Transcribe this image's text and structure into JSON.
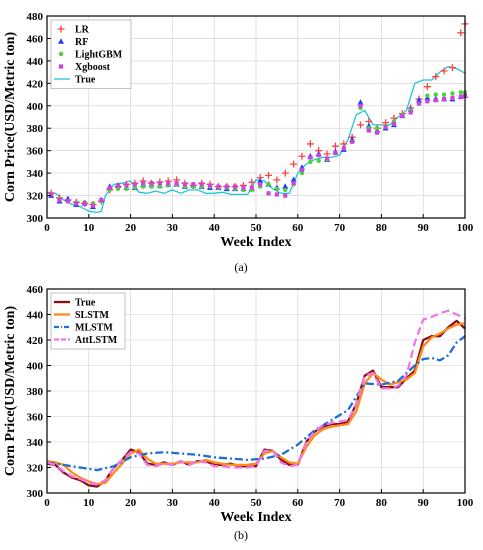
{
  "chart_data": [
    {
      "type": "scatter",
      "caption": "(a)",
      "xlabel": "Week Index",
      "ylabel": "Corn Price(USD/Metric ton)",
      "xlim": [
        0,
        100
      ],
      "ylim": [
        300,
        480
      ],
      "xticks": [
        0,
        10,
        20,
        30,
        40,
        50,
        60,
        70,
        80,
        90,
        100
      ],
      "yticks": [
        300,
        320,
        340,
        360,
        380,
        400,
        420,
        440,
        460,
        480
      ],
      "grid": true,
      "legend_position": "top-left",
      "series": [
        {
          "name": "LR",
          "style": "marker",
          "marker": "+",
          "color": "#ff4040",
          "x": [
            1,
            3,
            5,
            7,
            9,
            11,
            13,
            15,
            17,
            19,
            21,
            23,
            25,
            27,
            29,
            31,
            33,
            35,
            37,
            39,
            41,
            43,
            45,
            47,
            49,
            51,
            53,
            55,
            57,
            59,
            61,
            63,
            65,
            67,
            69,
            71,
            73,
            75,
            77,
            79,
            81,
            83,
            85,
            87,
            89,
            91,
            93,
            95,
            97,
            99,
            100
          ],
          "y": [
            322,
            318,
            316,
            314,
            313,
            312,
            315,
            325,
            328,
            330,
            331,
            333,
            331,
            332,
            333,
            334,
            331,
            329,
            331,
            330,
            328,
            328,
            328,
            329,
            332,
            336,
            338,
            334,
            340,
            348,
            355,
            366,
            360,
            357,
            364,
            366,
            372,
            383,
            386,
            380,
            385,
            389,
            393,
            398,
            406,
            417,
            426,
            431,
            434,
            465,
            473
          ]
        },
        {
          "name": "RF",
          "style": "marker",
          "marker": "triangle",
          "color": "#1e3cff",
          "x": [
            1,
            3,
            5,
            7,
            9,
            11,
            13,
            15,
            17,
            19,
            21,
            23,
            25,
            27,
            29,
            31,
            33,
            35,
            37,
            39,
            41,
            43,
            45,
            47,
            49,
            51,
            53,
            55,
            57,
            59,
            61,
            63,
            65,
            67,
            69,
            71,
            73,
            75,
            77,
            79,
            81,
            83,
            85,
            87,
            89,
            91,
            93,
            95,
            97,
            99,
            100
          ],
          "y": [
            320,
            315,
            317,
            312,
            313,
            310,
            316,
            328,
            329,
            327,
            327,
            330,
            330,
            329,
            330,
            330,
            328,
            329,
            328,
            327,
            327,
            326,
            326,
            326,
            326,
            333,
            330,
            327,
            328,
            334,
            345,
            355,
            357,
            352,
            359,
            361,
            370,
            403,
            382,
            378,
            380,
            383,
            391,
            397,
            405,
            407,
            406,
            406,
            406,
            408,
            409
          ]
        },
        {
          "name": "LightGBM",
          "style": "marker",
          "marker": "dot",
          "color": "#4cd137",
          "x": [
            1,
            3,
            5,
            7,
            9,
            11,
            13,
            15,
            17,
            19,
            21,
            23,
            25,
            27,
            29,
            31,
            33,
            35,
            37,
            39,
            41,
            43,
            45,
            47,
            49,
            51,
            53,
            55,
            57,
            59,
            61,
            63,
            65,
            67,
            69,
            71,
            73,
            75,
            77,
            79,
            81,
            83,
            85,
            87,
            89,
            91,
            93,
            95,
            97,
            99,
            100
          ],
          "y": [
            321,
            317,
            315,
            314,
            314,
            313,
            315,
            325,
            326,
            326,
            327,
            328,
            328,
            328,
            329,
            330,
            328,
            328,
            328,
            328,
            327,
            327,
            326,
            325,
            325,
            328,
            330,
            326,
            325,
            330,
            340,
            350,
            351,
            352,
            358,
            362,
            368,
            398,
            380,
            380,
            382,
            386,
            392,
            396,
            402,
            409,
            410,
            410,
            411,
            412,
            412
          ]
        },
        {
          "name": "Xgboost",
          "style": "marker",
          "marker": "square",
          "color": "#cc44dd",
          "x": [
            1,
            3,
            5,
            7,
            9,
            11,
            13,
            15,
            17,
            19,
            21,
            23,
            25,
            27,
            29,
            31,
            33,
            35,
            37,
            39,
            41,
            43,
            45,
            47,
            49,
            51,
            53,
            55,
            57,
            59,
            61,
            63,
            65,
            67,
            69,
            71,
            73,
            75,
            77,
            79,
            81,
            83,
            85,
            87,
            89,
            91,
            93,
            95,
            97,
            99,
            100
          ],
          "y": [
            321,
            316,
            315,
            313,
            313,
            311,
            316,
            327,
            329,
            329,
            330,
            331,
            331,
            331,
            331,
            331,
            330,
            330,
            330,
            329,
            328,
            328,
            328,
            327,
            327,
            330,
            322,
            321,
            320,
            331,
            343,
            354,
            356,
            353,
            358,
            362,
            368,
            400,
            378,
            376,
            381,
            384,
            391,
            394,
            402,
            404,
            405,
            406,
            407,
            408,
            409
          ]
        },
        {
          "name": "True",
          "style": "line",
          "color": "#1fc7d4",
          "x": [
            0,
            2,
            4,
            6,
            8,
            10,
            12,
            13,
            14,
            16,
            18,
            20,
            22,
            24,
            26,
            28,
            30,
            32,
            34,
            36,
            38,
            40,
            42,
            44,
            46,
            48,
            50,
            52,
            54,
            56,
            58,
            60,
            62,
            64,
            66,
            68,
            70,
            72,
            74,
            76,
            78,
            80,
            82,
            84,
            86,
            88,
            90,
            92,
            94,
            96,
            98,
            100
          ],
          "y": [
            323,
            322,
            316,
            312,
            310,
            306,
            305,
            306,
            320,
            330,
            331,
            333,
            323,
            322,
            324,
            322,
            325,
            322,
            325,
            325,
            322,
            322,
            323,
            321,
            321,
            321,
            334,
            333,
            326,
            322,
            322,
            340,
            348,
            352,
            354,
            354,
            356,
            370,
            392,
            396,
            383,
            383,
            383,
            390,
            396,
            420,
            423,
            423,
            430,
            435,
            433,
            429
          ]
        }
      ]
    },
    {
      "type": "line",
      "caption": "(b)",
      "xlabel": "Week Index",
      "ylabel": "Corn Price(USD/Metric ton)",
      "xlim": [
        0,
        100
      ],
      "ylim": [
        300,
        460
      ],
      "xticks": [
        0,
        10,
        20,
        30,
        40,
        50,
        60,
        70,
        80,
        90,
        100
      ],
      "yticks": [
        300,
        320,
        340,
        360,
        380,
        400,
        420,
        440,
        460
      ],
      "grid": true,
      "legend_position": "top-left",
      "series": [
        {
          "name": "True",
          "style": "solid",
          "color": "#8b0f1a",
          "x": [
            0,
            2,
            4,
            6,
            8,
            10,
            12,
            14,
            16,
            18,
            20,
            22,
            24,
            26,
            28,
            30,
            32,
            34,
            36,
            38,
            40,
            42,
            44,
            46,
            48,
            50,
            52,
            54,
            56,
            58,
            60,
            62,
            64,
            66,
            68,
            70,
            72,
            74,
            76,
            78,
            80,
            82,
            84,
            86,
            88,
            90,
            92,
            94,
            96,
            98,
            100
          ],
          "y": [
            323,
            322,
            316,
            312,
            310,
            306,
            305,
            310,
            320,
            326,
            334,
            332,
            323,
            322,
            324,
            322,
            325,
            322,
            325,
            325,
            322,
            322,
            323,
            321,
            321,
            321,
            334,
            333,
            326,
            322,
            322,
            340,
            348,
            352,
            354,
            354,
            356,
            370,
            392,
            396,
            383,
            383,
            383,
            390,
            396,
            420,
            423,
            423,
            430,
            435,
            429
          ]
        },
        {
          "name": "SLSTM",
          "style": "solid",
          "color": "#ff8c1a",
          "x": [
            0,
            2,
            4,
            6,
            8,
            10,
            12,
            14,
            16,
            18,
            20,
            22,
            24,
            26,
            28,
            30,
            32,
            34,
            36,
            38,
            40,
            42,
            44,
            46,
            48,
            50,
            52,
            54,
            56,
            58,
            60,
            62,
            64,
            66,
            68,
            70,
            72,
            74,
            76,
            78,
            80,
            82,
            84,
            86,
            88,
            90,
            92,
            94,
            96,
            98,
            100
          ],
          "y": [
            325,
            324,
            322,
            316,
            312,
            309,
            307,
            308,
            316,
            323,
            331,
            334,
            327,
            323,
            323,
            323,
            324,
            324,
            324,
            326,
            324,
            323,
            322,
            322,
            322,
            323,
            331,
            333,
            328,
            324,
            323,
            336,
            345,
            350,
            352,
            353,
            354,
            364,
            386,
            394,
            389,
            385,
            387,
            389,
            394,
            415,
            422,
            425,
            429,
            432,
            433
          ]
        },
        {
          "name": "MLSTM",
          "style": "dash-dot",
          "color": "#1f6fcf",
          "x": [
            0,
            4,
            8,
            12,
            16,
            20,
            24,
            28,
            32,
            36,
            40,
            44,
            48,
            52,
            56,
            60,
            64,
            68,
            72,
            76,
            80,
            84,
            88,
            90,
            92,
            94,
            96,
            98,
            100
          ],
          "y": [
            324,
            322,
            320,
            318,
            321,
            328,
            331,
            332,
            331,
            330,
            328,
            327,
            326,
            327,
            330,
            338,
            349,
            357,
            365,
            386,
            385,
            388,
            400,
            405,
            406,
            404,
            408,
            418,
            423
          ]
        },
        {
          "name": "AttLSTM",
          "style": "dashed",
          "color": "#f076e6",
          "x": [
            0,
            2,
            4,
            6,
            8,
            10,
            12,
            14,
            16,
            18,
            20,
            22,
            24,
            26,
            28,
            30,
            32,
            34,
            36,
            38,
            40,
            42,
            44,
            46,
            48,
            50,
            52,
            54,
            56,
            58,
            60,
            62,
            64,
            66,
            68,
            70,
            72,
            74,
            76,
            78,
            80,
            82,
            84,
            86,
            88,
            90,
            92,
            94,
            96,
            98,
            100
          ],
          "y": [
            324,
            322,
            317,
            313,
            311,
            308,
            307,
            310,
            320,
            326,
            332,
            331,
            322,
            321,
            323,
            322,
            325,
            322,
            325,
            324,
            321,
            321,
            320,
            320,
            320,
            321,
            333,
            333,
            324,
            321,
            322,
            340,
            348,
            353,
            355,
            356,
            357,
            370,
            392,
            394,
            382,
            382,
            384,
            392,
            418,
            436,
            438,
            441,
            443,
            440,
            437
          ]
        }
      ]
    }
  ]
}
